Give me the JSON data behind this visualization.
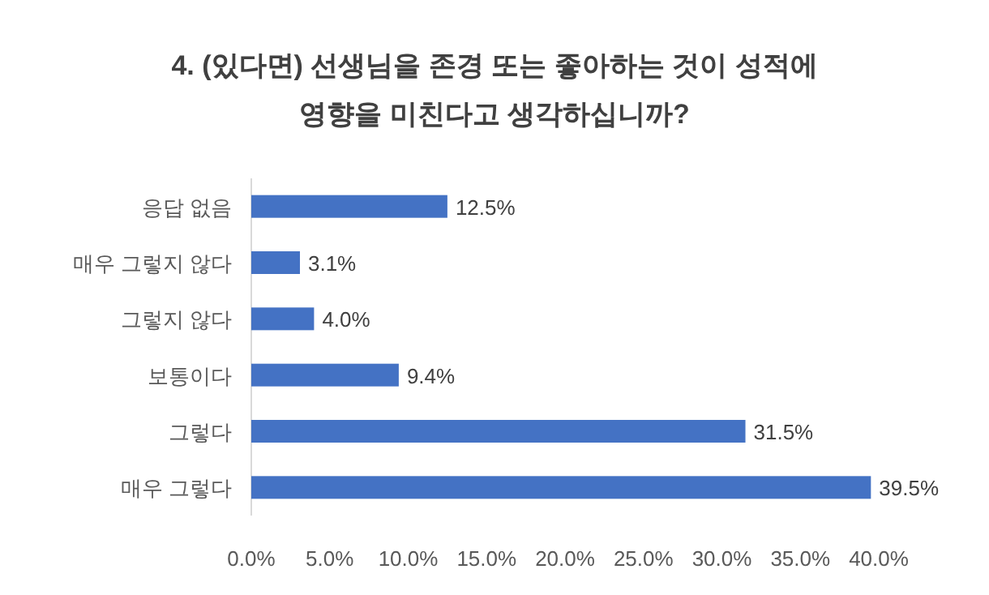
{
  "chart_data": {
    "type": "bar",
    "orientation": "horizontal",
    "title": "4. (있다면) 선생님을 존경 또는 좋아하는 것이 성적에\n영향을 미친다고 생각하십니까?",
    "categories": [
      "응답 없음",
      "매우 그렇지 않다",
      "그렇지 않다",
      "보통이다",
      "그렇다",
      "매우 그렇다"
    ],
    "values": [
      12.5,
      3.1,
      4.0,
      9.4,
      31.5,
      39.5
    ],
    "value_labels": [
      "12.5%",
      "3.1%",
      "4.0%",
      "9.4%",
      "31.5%",
      "39.5%"
    ],
    "color": "#4472c4",
    "xlim": [
      0,
      40
    ],
    "xticks": [
      {
        "value": 0,
        "label": "0.0%"
      },
      {
        "value": 5,
        "label": "5.0%"
      },
      {
        "value": 10,
        "label": "10.0%"
      },
      {
        "value": 15,
        "label": "15.0%"
      },
      {
        "value": 20,
        "label": "20.0%"
      },
      {
        "value": 25,
        "label": "25.0%"
      },
      {
        "value": 30,
        "label": "30.0%"
      },
      {
        "value": 35,
        "label": "35.0%"
      },
      {
        "value": 40,
        "label": "40.0%"
      }
    ]
  }
}
